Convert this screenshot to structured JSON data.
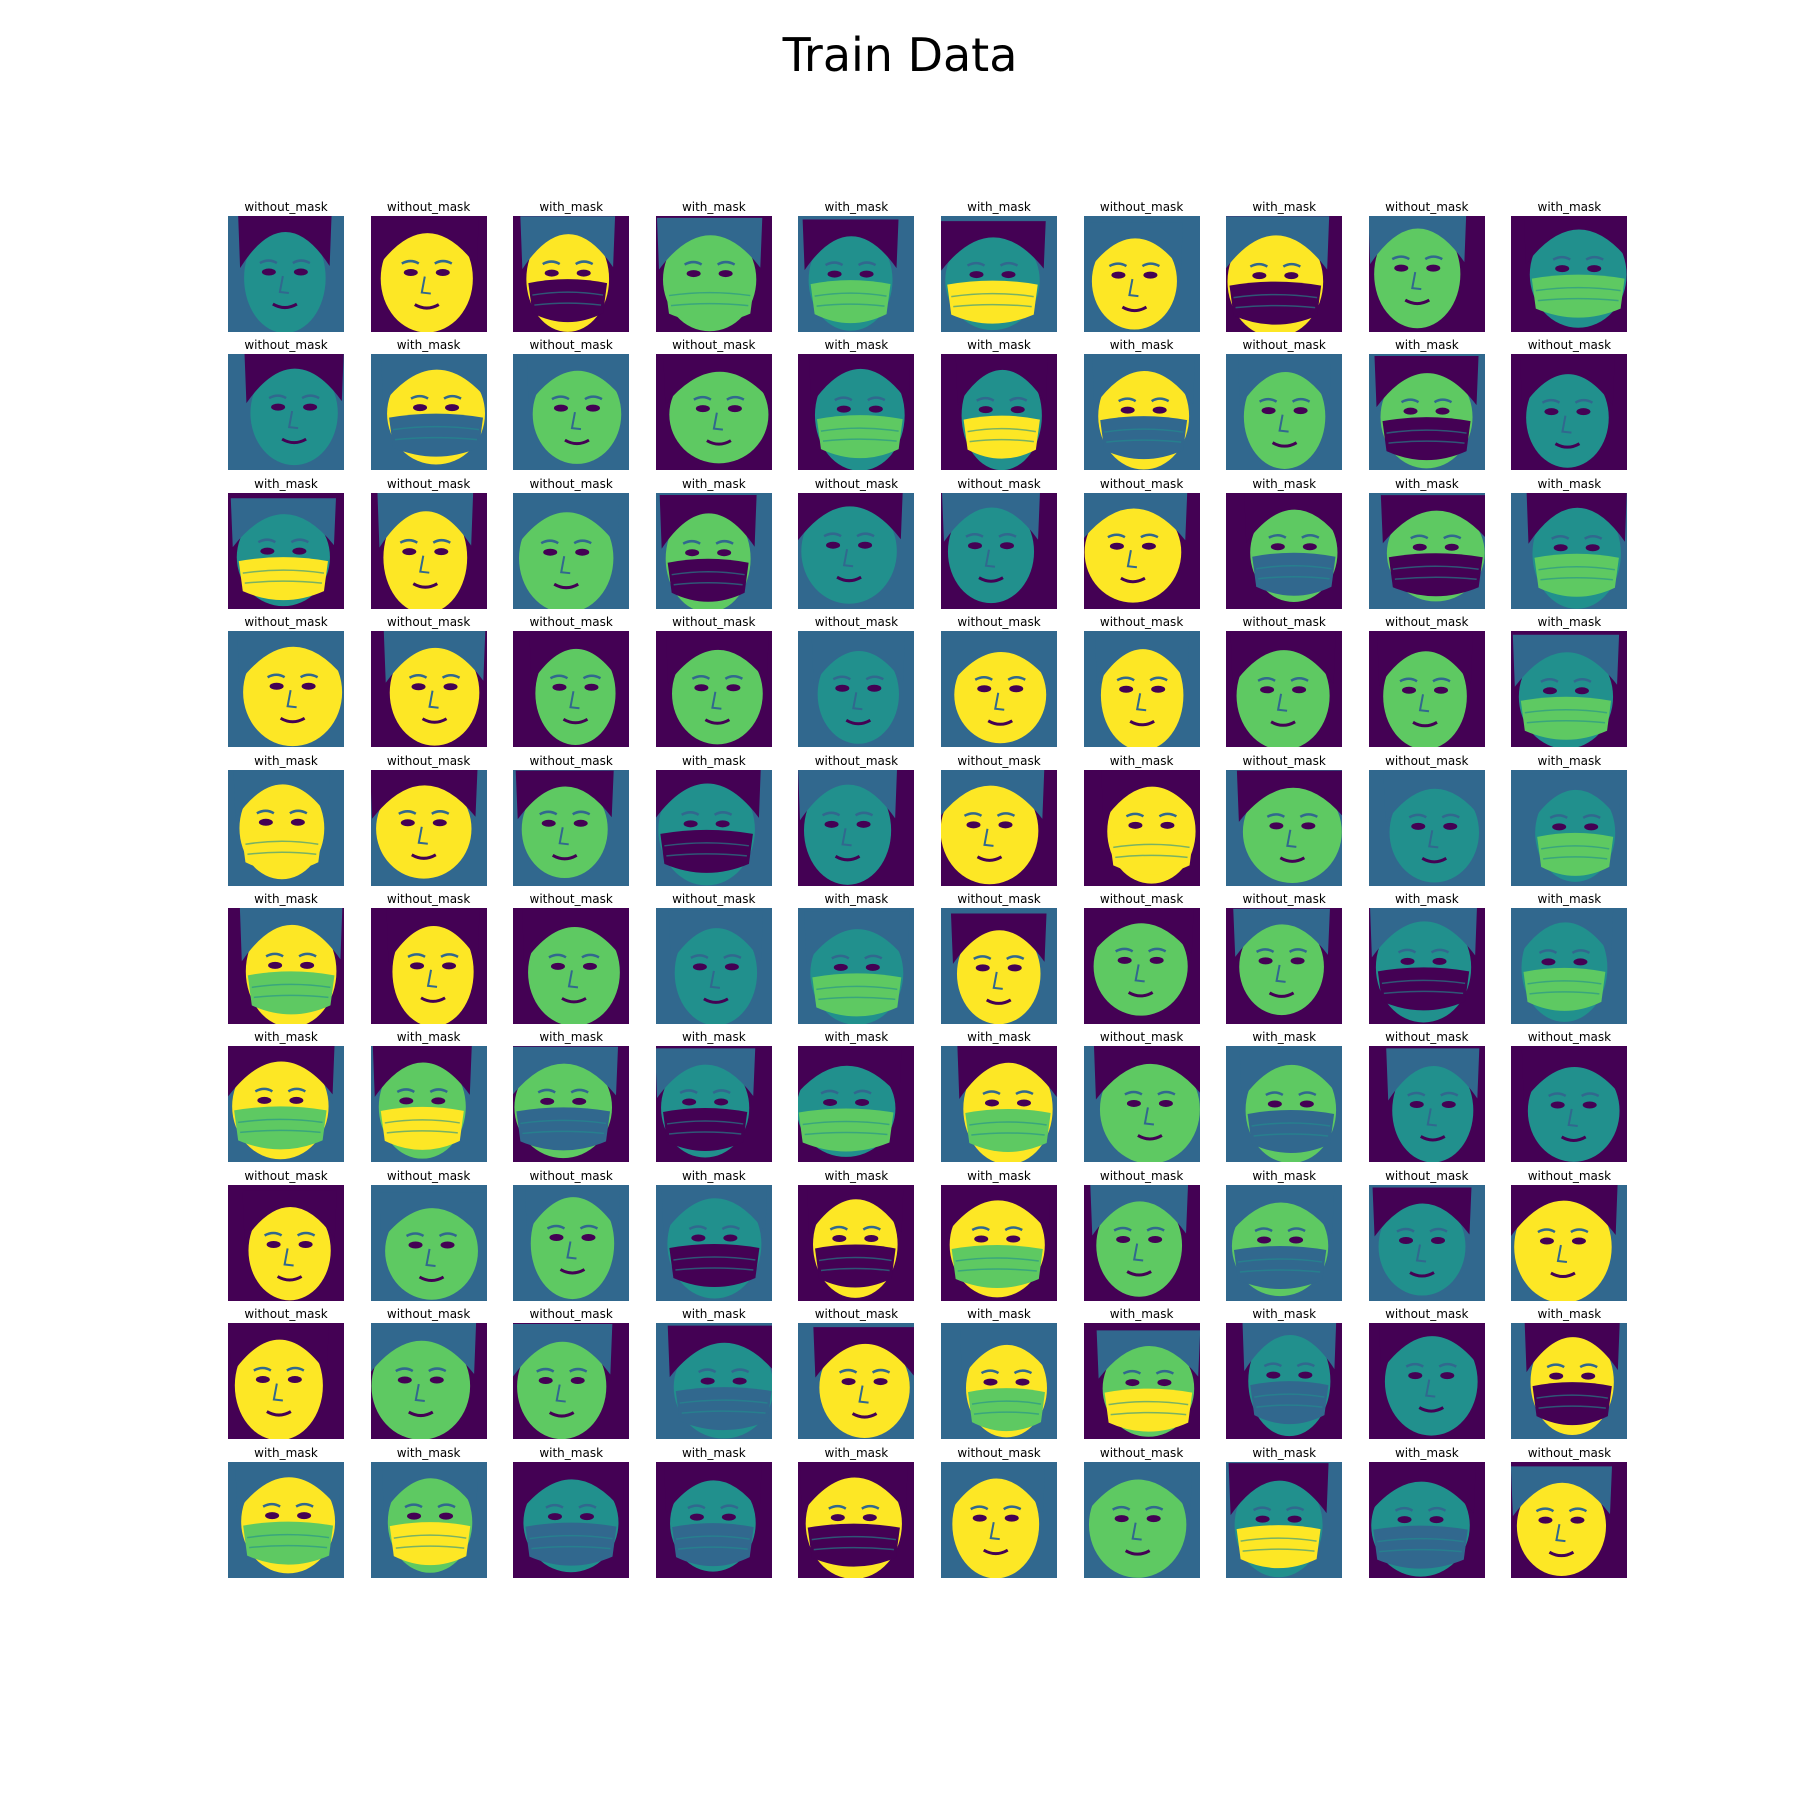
{
  "title": "Train Data",
  "colormap": {
    "dark": "#440154",
    "mid_dark": "#31688e",
    "mid": "#21908d",
    "mid_light": "#5ec962",
    "light": "#fde725"
  },
  "label_values": [
    "with_mask",
    "without_mask"
  ],
  "labels": [
    [
      "without_mask",
      "without_mask",
      "with_mask",
      "with_mask",
      "with_mask",
      "with_mask",
      "without_mask",
      "with_mask",
      "without_mask",
      "with_mask"
    ],
    [
      "without_mask",
      "with_mask",
      "without_mask",
      "without_mask",
      "with_mask",
      "with_mask",
      "with_mask",
      "without_mask",
      "with_mask",
      "without_mask"
    ],
    [
      "with_mask",
      "without_mask",
      "without_mask",
      "with_mask",
      "without_mask",
      "without_mask",
      "without_mask",
      "with_mask",
      "with_mask",
      "with_mask"
    ],
    [
      "without_mask",
      "without_mask",
      "without_mask",
      "without_mask",
      "without_mask",
      "without_mask",
      "without_mask",
      "without_mask",
      "without_mask",
      "with_mask"
    ],
    [
      "with_mask",
      "without_mask",
      "without_mask",
      "with_mask",
      "without_mask",
      "without_mask",
      "with_mask",
      "without_mask",
      "without_mask",
      "with_mask"
    ],
    [
      "with_mask",
      "without_mask",
      "without_mask",
      "without_mask",
      "with_mask",
      "without_mask",
      "without_mask",
      "without_mask",
      "with_mask",
      "with_mask"
    ],
    [
      "with_mask",
      "with_mask",
      "with_mask",
      "with_mask",
      "with_mask",
      "with_mask",
      "without_mask",
      "with_mask",
      "without_mask",
      "without_mask"
    ],
    [
      "without_mask",
      "without_mask",
      "without_mask",
      "with_mask",
      "with_mask",
      "with_mask",
      "without_mask",
      "with_mask",
      "without_mask",
      "without_mask"
    ],
    [
      "without_mask",
      "without_mask",
      "without_mask",
      "with_mask",
      "without_mask",
      "with_mask",
      "with_mask",
      "with_mask",
      "without_mask",
      "with_mask"
    ],
    [
      "with_mask",
      "with_mask",
      "with_mask",
      "with_mask",
      "with_mask",
      "without_mask",
      "without_mask",
      "with_mask",
      "with_mask",
      "without_mask"
    ]
  ]
}
